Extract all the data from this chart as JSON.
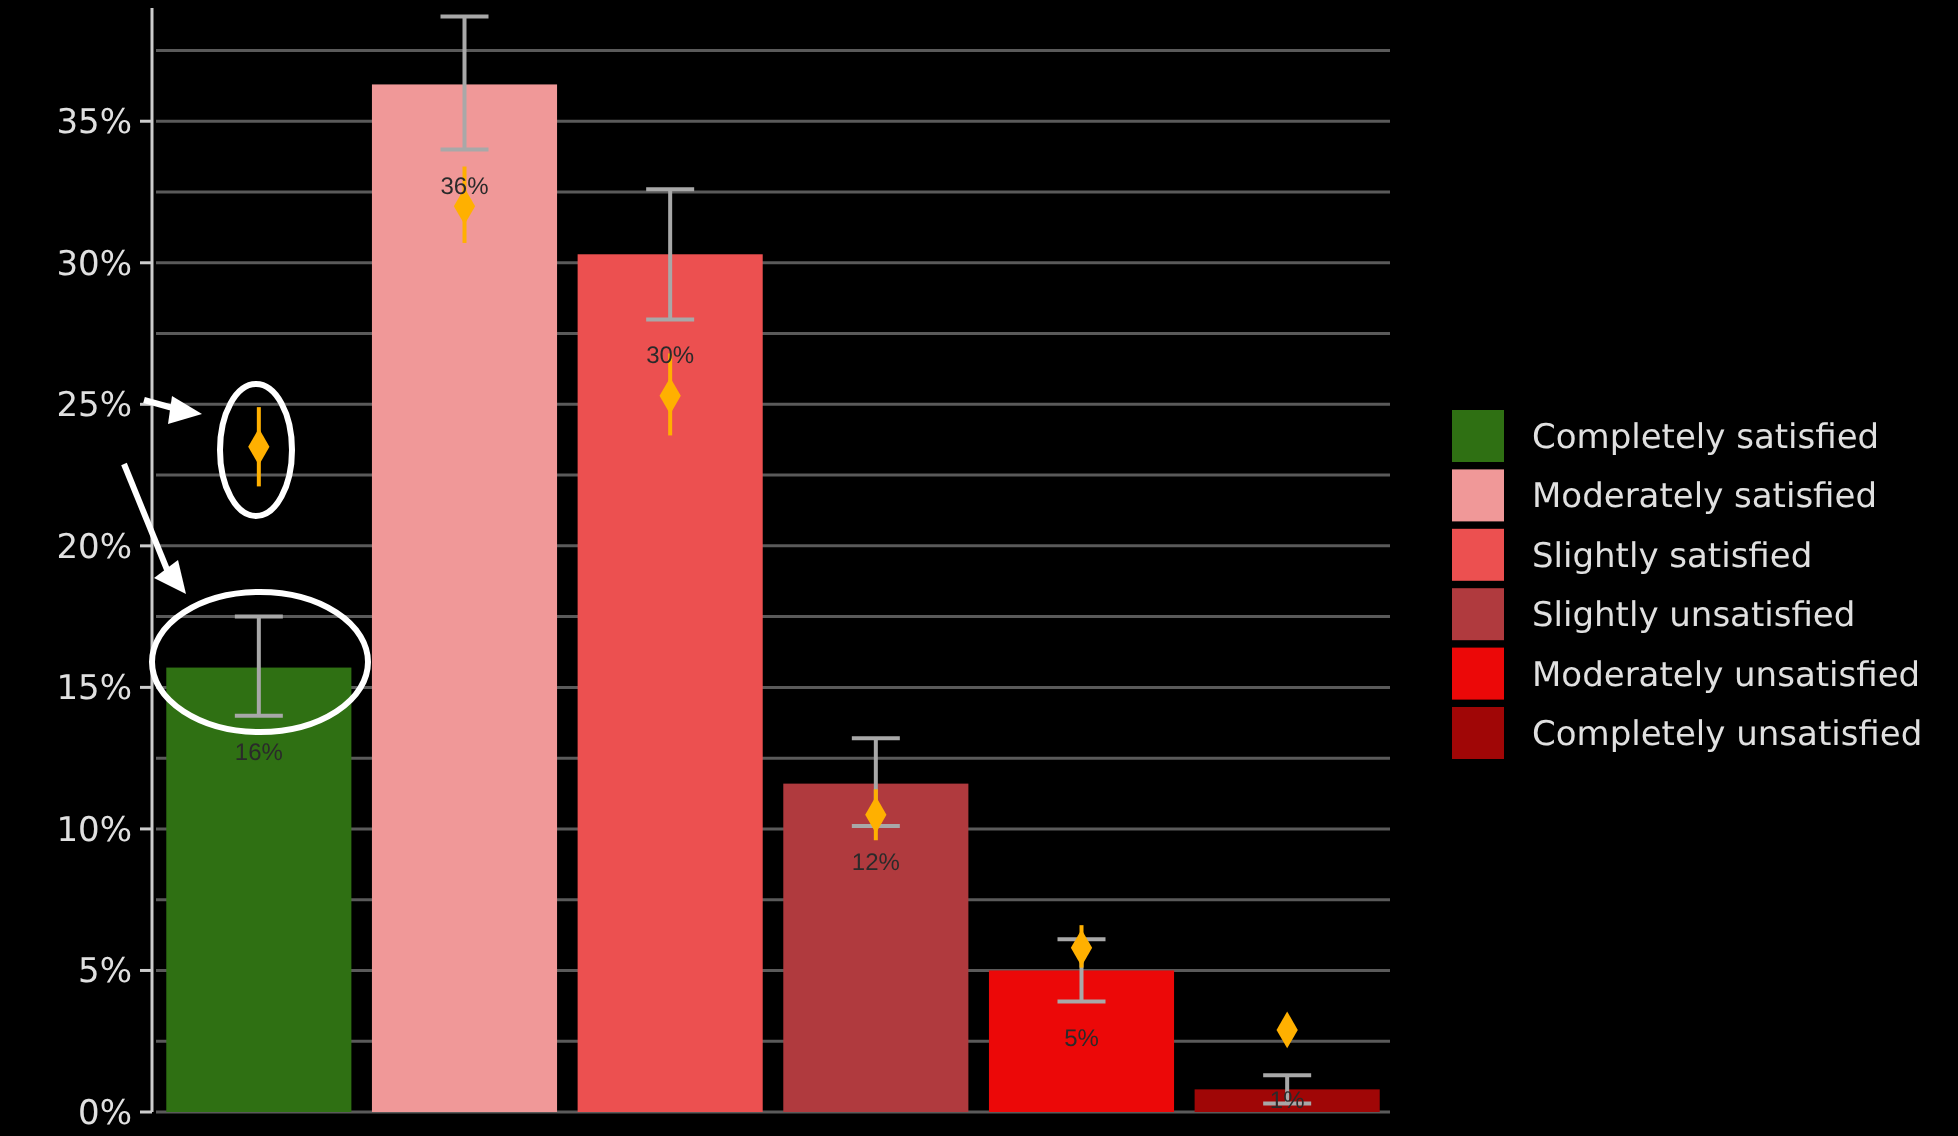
{
  "chart_data": {
    "type": "bar",
    "categories": [
      null,
      null,
      null,
      null,
      null,
      null
    ],
    "ylim": [
      0,
      39
    ],
    "yticks": [
      {
        "value": 0,
        "label": "0%"
      },
      {
        "value": 2.5,
        "label": null
      },
      {
        "value": 5,
        "label": "5%"
      },
      {
        "value": 7.5,
        "label": null
      },
      {
        "value": 10,
        "label": "10%"
      },
      {
        "value": 12.5,
        "label": null
      },
      {
        "value": 15,
        "label": "15%"
      },
      {
        "value": 17.5,
        "label": null
      },
      {
        "value": 20,
        "label": "20%"
      },
      {
        "value": 22.5,
        "label": null
      },
      {
        "value": 25,
        "label": "25%"
      },
      {
        "value": 27.5,
        "label": null
      },
      {
        "value": 30,
        "label": "30%"
      },
      {
        "value": 32.5,
        "label": null
      },
      {
        "value": 35,
        "label": "35%"
      },
      {
        "value": 37.5,
        "label": null
      }
    ],
    "grid": "y",
    "legend": "right",
    "series": [
      {
        "name": "Completely satisfied",
        "color": "#2f7013",
        "values": [
          15.7,
          null,
          null,
          null,
          null,
          null
        ],
        "errors": [
          [
            14.0,
            17.5
          ],
          null,
          null,
          null,
          null,
          null
        ],
        "value_labels": [
          "16%",
          null,
          null,
          null,
          null,
          null
        ]
      },
      {
        "name": "Moderately satisfied",
        "color": "#f09898",
        "values": [
          null,
          36.3,
          null,
          null,
          null,
          null
        ],
        "errors": [
          null,
          [
            34.0,
            38.7
          ],
          null,
          null,
          null,
          null
        ],
        "value_labels": [
          null,
          "36%",
          null,
          null,
          null,
          null
        ]
      },
      {
        "name": "Slightly satisfied",
        "color": "#ec5050",
        "values": [
          null,
          null,
          30.3,
          null,
          null,
          null
        ],
        "errors": [
          null,
          null,
          [
            28.0,
            32.6
          ],
          null,
          null,
          null
        ],
        "value_labels": [
          null,
          null,
          "30%",
          null,
          null,
          null
        ]
      },
      {
        "name": "Slightly unsatisfied",
        "color": "#b03a3e",
        "values": [
          null,
          null,
          null,
          11.6,
          null,
          null
        ],
        "errors": [
          null,
          null,
          null,
          [
            10.1,
            13.2
          ],
          null,
          null
        ],
        "value_labels": [
          null,
          null,
          null,
          "12%",
          null,
          null
        ]
      },
      {
        "name": "Moderately unsatisfied",
        "color": "#ec0808",
        "values": [
          null,
          null,
          null,
          null,
          5.0,
          null
        ],
        "errors": [
          null,
          null,
          null,
          null,
          [
            3.9,
            6.1
          ],
          null
        ],
        "value_labels": [
          null,
          null,
          null,
          null,
          "5%",
          null
        ]
      },
      {
        "name": "Completely unsatisfied",
        "color": "#a00606",
        "values": [
          null,
          null,
          null,
          null,
          null,
          0.8
        ],
        "errors": [
          null,
          null,
          null,
          null,
          null,
          [
            0.3,
            1.3
          ]
        ],
        "value_labels": [
          null,
          null,
          null,
          null,
          null,
          "1%"
        ]
      },
      {
        "type": "scatter",
        "color": "#ffb000",
        "marker": "diamond",
        "values": [
          23.5,
          32.0,
          25.3,
          10.5,
          5.8,
          2.9
        ],
        "errors": [
          [
            22.1,
            24.9
          ],
          [
            30.7,
            33.4
          ],
          [
            23.9,
            26.8
          ],
          [
            9.6,
            11.4
          ],
          [
            5.1,
            6.6
          ],
          [
            2.6,
            3.2
          ]
        ]
      }
    ]
  }
}
